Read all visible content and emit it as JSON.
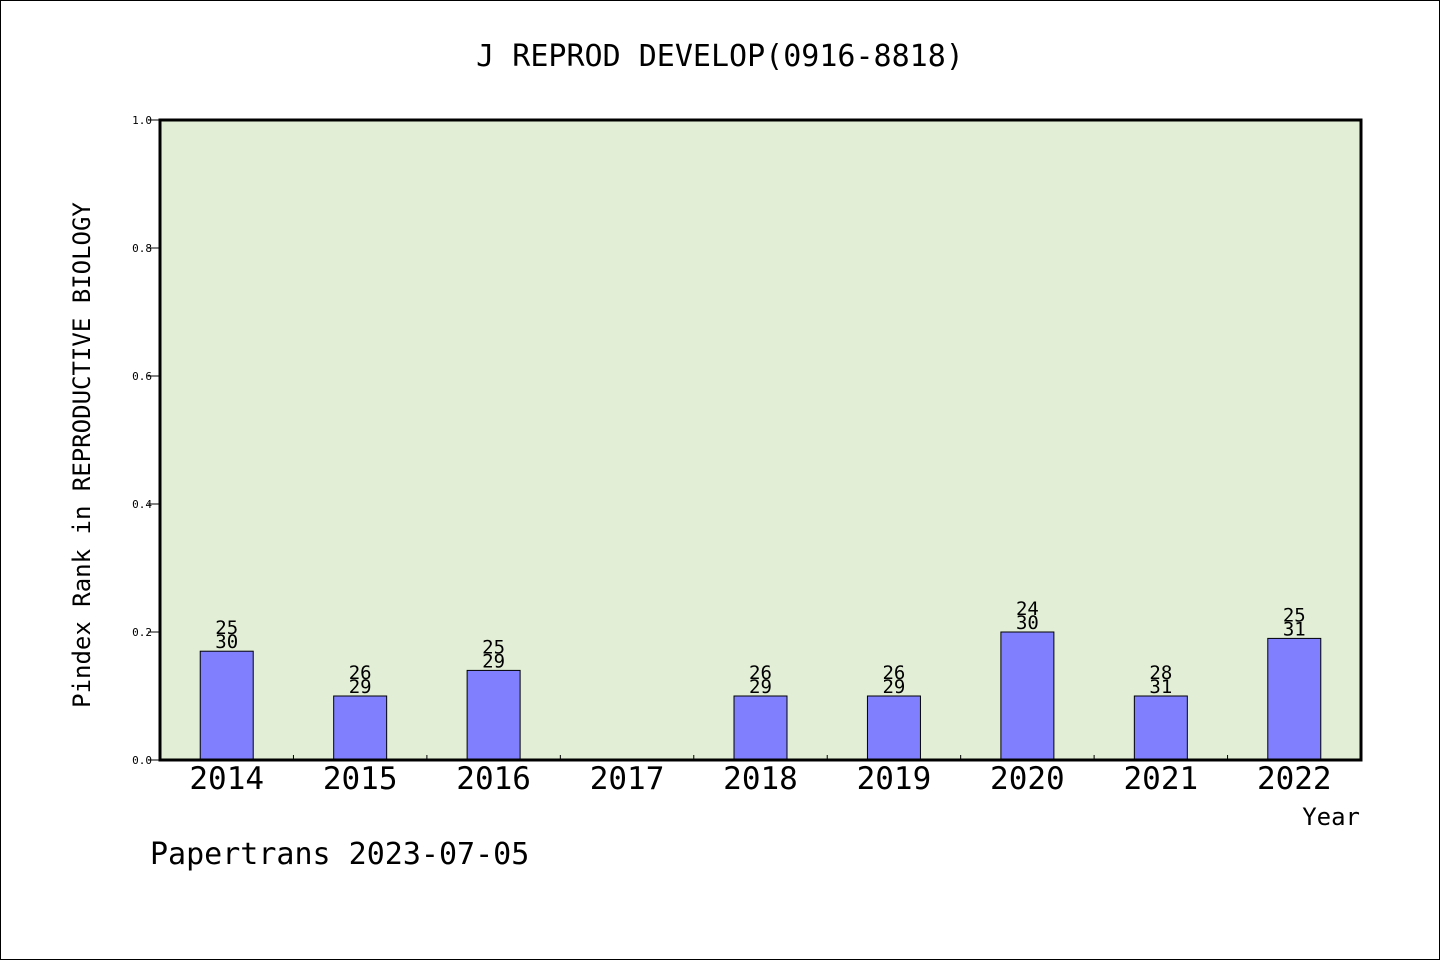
{
  "chart_data": {
    "type": "bar",
    "title": "J REPROD DEVELOP(0916-8818)",
    "xlabel": "Year",
    "ylabel": "Pindex Rank in REPRODUCTIVE BIOLOGY",
    "footer": "Papertrans 2023-07-05",
    "ylim": [
      0,
      1.0
    ],
    "yticks": [
      "0.0",
      "0.2",
      "0.4",
      "0.6",
      "0.8",
      "1.0"
    ],
    "categories": [
      "2014",
      "2015",
      "2016",
      "2017",
      "2018",
      "2019",
      "2020",
      "2021",
      "2022"
    ],
    "values": [
      0.17,
      0.1,
      0.14,
      null,
      0.1,
      0.1,
      0.2,
      0.1,
      0.19
    ],
    "rank_labels": [
      [
        "25",
        "30"
      ],
      [
        "26",
        "29"
      ],
      [
        "25",
        "29"
      ],
      null,
      [
        "26",
        "29"
      ],
      [
        "26",
        "29"
      ],
      [
        "24",
        "30"
      ],
      [
        "28",
        "31"
      ],
      [
        "25",
        "31"
      ]
    ],
    "colors": {
      "plot_bg": "#e2efd6",
      "bar": "#8080ff",
      "axis": "#000000"
    }
  }
}
